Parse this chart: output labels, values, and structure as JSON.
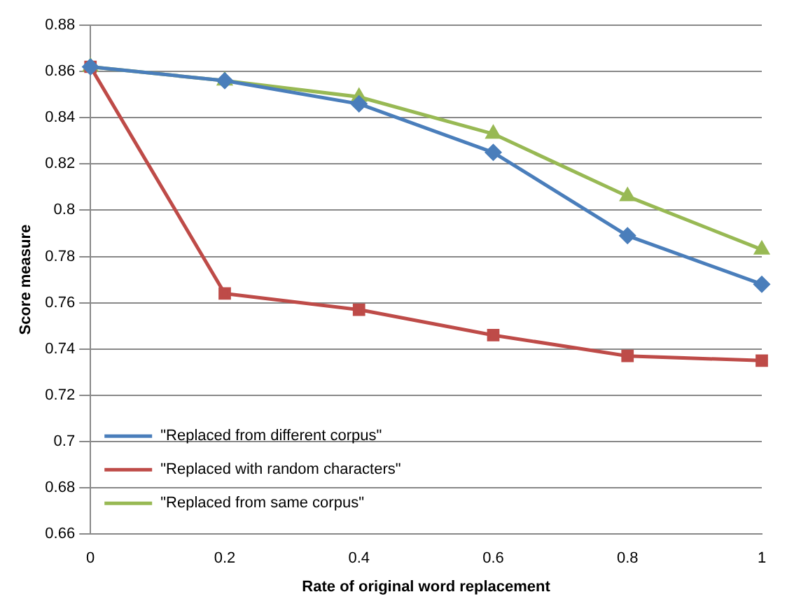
{
  "chart_data": {
    "type": "line",
    "xlabel": "Rate of original word replacement",
    "ylabel": "Score measure",
    "categories": [
      "0",
      "0.2",
      "0.4",
      "0.6",
      "0.8",
      "1"
    ],
    "series": [
      {
        "name": "\"Replaced from different corpus\"",
        "color": "#4a7ebb",
        "marker": "diamond",
        "values": [
          0.862,
          0.856,
          0.846,
          0.825,
          0.789,
          0.768
        ]
      },
      {
        "name": "\"Replaced with random characters\"",
        "color": "#be4b48",
        "marker": "square",
        "values": [
          0.862,
          0.764,
          0.757,
          0.746,
          0.737,
          0.735
        ]
      },
      {
        "name": "\"Replaced from same corpus\"",
        "color": "#98b954",
        "marker": "triangle",
        "values": [
          0.862,
          0.856,
          0.849,
          0.833,
          0.806,
          0.783
        ]
      }
    ],
    "ylim": [
      0.66,
      0.88
    ],
    "yticks": [
      0.66,
      0.68,
      0.7,
      0.72,
      0.74,
      0.76,
      0.78,
      0.8,
      0.82,
      0.84,
      0.86,
      0.88
    ],
    "grid": "y",
    "legend": "bottom left"
  }
}
